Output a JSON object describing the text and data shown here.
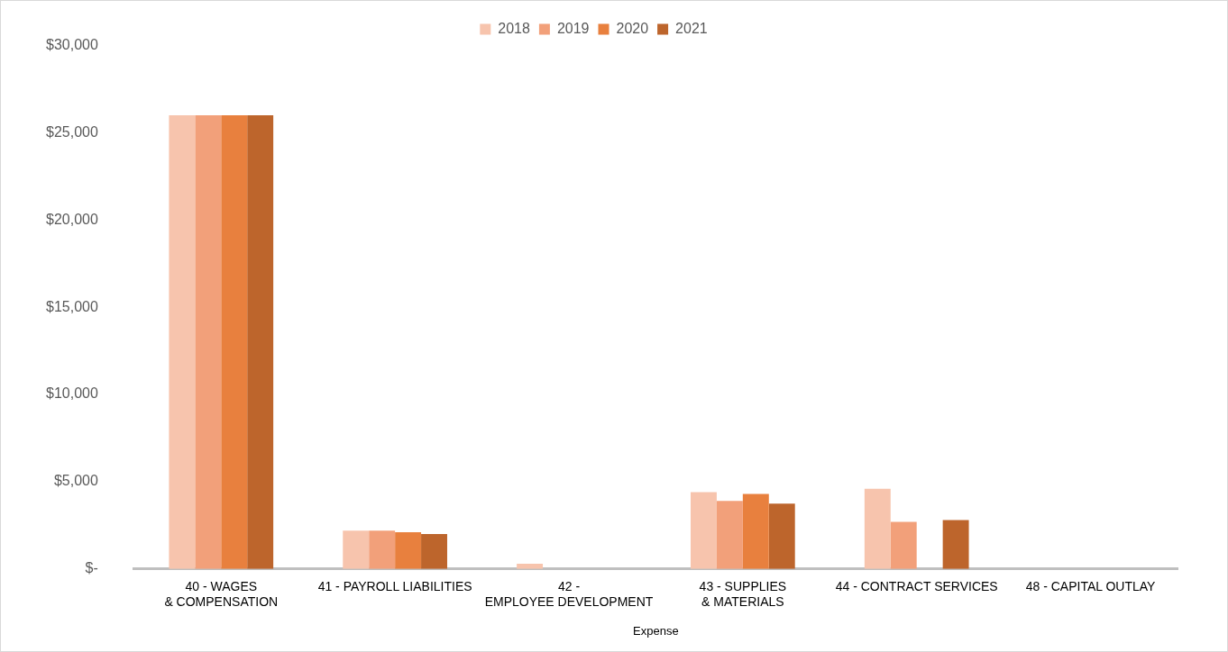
{
  "chart_data": {
    "type": "bar",
    "xlabel": "Expense",
    "categories": [
      "40 - WAGES & COMPENSATION",
      "41 - PAYROLL LIABILITIES",
      "42 - EMPLOYEE DEVELOPMENT",
      "43 - SUPPLIES & MATERIALS",
      "44 - CONTRACT SERVICES",
      "48 - CAPITAL OUTLAY"
    ],
    "series": [
      {
        "name": "2018",
        "color": "#f7c4ad",
        "values": [
          26000,
          2200,
          300,
          4400,
          4600,
          0
        ]
      },
      {
        "name": "2019",
        "color": "#f2a07a",
        "values": [
          26000,
          2200,
          0,
          3900,
          2700,
          0
        ]
      },
      {
        "name": "2020",
        "color": "#e8803e",
        "values": [
          26000,
          2100,
          0,
          4300,
          0,
          0
        ]
      },
      {
        "name": "2021",
        "color": "#bd652c",
        "values": [
          26000,
          2000,
          0,
          3750,
          2800,
          0
        ]
      }
    ],
    "ylim": [
      0,
      30000
    ],
    "yticks": [
      {
        "value": 0,
        "label": "$-"
      },
      {
        "value": 5000,
        "label": "$5,000"
      },
      {
        "value": 10000,
        "label": "$10,000"
      },
      {
        "value": 15000,
        "label": "$15,000"
      },
      {
        "value": 20000,
        "label": "$20,000"
      },
      {
        "value": 25000,
        "label": "$25,000"
      },
      {
        "value": 30000,
        "label": "$30,000"
      }
    ],
    "grid": false,
    "legend": "top"
  }
}
